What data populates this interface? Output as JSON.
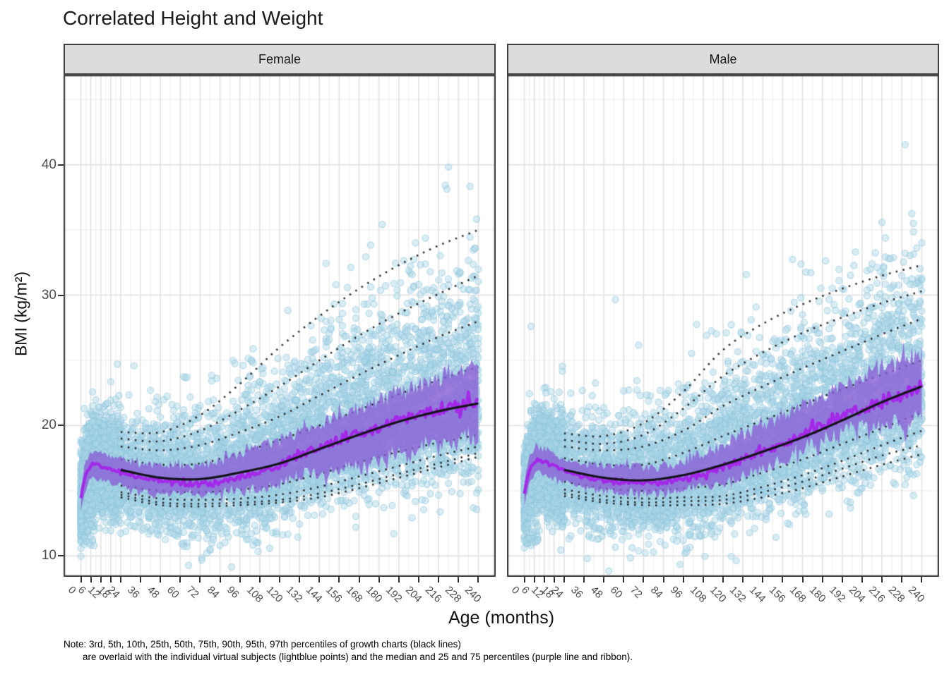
{
  "title": "Correlated Height and Weight",
  "note_line1": "Note: 3rd, 5th, 10th, 25th, 50th, 75th, 90th, 95th, 97th percentiles of growth charts (black lines)",
  "note_line2": "are overlaid with the individual virtual subjects (lightblue points) and the median and 25 and 75 percentiles (purple line and ribbon).",
  "chart_data": {
    "type": "scatter",
    "title": "Correlated Height and Weight",
    "xlabel": "Age (months)",
    "ylabel": "BMI (kg/m²)",
    "x_ticks": [
      0,
      6,
      12,
      18,
      24,
      36,
      48,
      60,
      72,
      84,
      96,
      108,
      120,
      132,
      144,
      156,
      168,
      180,
      192,
      204,
      216,
      228,
      240
    ],
    "y_ticks": [
      10,
      20,
      30,
      40
    ],
    "y_minor": [
      15,
      25,
      35,
      45
    ],
    "xlim": [
      -10.5,
      250.5
    ],
    "ylim": [
      8.4,
      46.9
    ],
    "grid": true,
    "legend_position": "none",
    "percentile_knot_ages": [
      24,
      48,
      72,
      96,
      120,
      144,
      168,
      192,
      216,
      240
    ],
    "facets": [
      {
        "label": "Female",
        "seed": 1337,
        "median_knots": [
          [
            0,
            14.5
          ],
          [
            3,
            16.3
          ],
          [
            6,
            16.9
          ],
          [
            9,
            17.1
          ],
          [
            12,
            16.9
          ],
          [
            18,
            16.7
          ],
          [
            24,
            16.5
          ],
          [
            36,
            16.0
          ],
          [
            48,
            15.8
          ],
          [
            60,
            15.6
          ],
          [
            72,
            15.5
          ],
          [
            84,
            15.7
          ],
          [
            96,
            16.1
          ],
          [
            108,
            16.5
          ],
          [
            120,
            17.0
          ],
          [
            132,
            17.7
          ],
          [
            144,
            18.3
          ],
          [
            156,
            18.9
          ],
          [
            168,
            19.4
          ],
          [
            180,
            19.9
          ],
          [
            192,
            20.4
          ],
          [
            204,
            20.8
          ],
          [
            216,
            21.2
          ],
          [
            228,
            21.5
          ],
          [
            240,
            21.7
          ]
        ],
        "ribbon_upper_knots": [
          [
            0,
            15.4
          ],
          [
            3,
            17.2
          ],
          [
            6,
            17.9
          ],
          [
            9,
            18.1
          ],
          [
            12,
            17.9
          ],
          [
            18,
            17.6
          ],
          [
            24,
            17.4
          ],
          [
            36,
            17.0
          ],
          [
            48,
            16.9
          ],
          [
            60,
            16.9
          ],
          [
            72,
            17.0
          ],
          [
            84,
            17.3
          ],
          [
            96,
            17.8
          ],
          [
            108,
            18.3
          ],
          [
            120,
            18.9
          ],
          [
            132,
            19.5
          ],
          [
            144,
            20.1
          ],
          [
            156,
            20.7
          ],
          [
            168,
            21.3
          ],
          [
            180,
            21.9
          ],
          [
            192,
            22.4
          ],
          [
            204,
            22.9
          ],
          [
            216,
            23.4
          ],
          [
            228,
            24.0
          ],
          [
            240,
            24.5
          ]
        ],
        "ribbon_lower_knots": [
          [
            0,
            13.6
          ],
          [
            3,
            15.3
          ],
          [
            6,
            15.9
          ],
          [
            9,
            16.1
          ],
          [
            12,
            15.9
          ],
          [
            18,
            15.6
          ],
          [
            24,
            15.4
          ],
          [
            36,
            15.0
          ],
          [
            48,
            14.9
          ],
          [
            60,
            14.85
          ],
          [
            72,
            14.9
          ],
          [
            84,
            15.0
          ],
          [
            96,
            15.1
          ],
          [
            108,
            15.2
          ],
          [
            120,
            15.5
          ],
          [
            132,
            16.3
          ],
          [
            144,
            16.2
          ],
          [
            156,
            16.7
          ],
          [
            168,
            17.2
          ],
          [
            180,
            17.6
          ],
          [
            192,
            18.0
          ],
          [
            204,
            18.4
          ],
          [
            216,
            18.7
          ],
          [
            228,
            19.0
          ],
          [
            240,
            19.3
          ]
        ],
        "percentiles": {
          "p3": [
            14.5,
            13.9,
            13.8,
            13.9,
            14.1,
            14.5,
            15.2,
            16.0,
            16.8,
            17.6
          ],
          "p5": [
            14.7,
            14.1,
            14.0,
            14.1,
            14.3,
            14.8,
            15.5,
            16.3,
            17.1,
            17.9
          ],
          "p10": [
            14.9,
            14.4,
            14.3,
            14.4,
            14.7,
            15.3,
            16.1,
            16.9,
            17.7,
            18.4
          ],
          "p25": [
            15.4,
            15.0,
            14.9,
            15.1,
            15.5,
            16.3,
            17.2,
            18.0,
            18.7,
            19.3
          ],
          "p50": [
            16.6,
            16.0,
            15.9,
            16.4,
            17.1,
            18.2,
            19.3,
            20.3,
            21.1,
            21.7
          ],
          "p75": [
            17.4,
            17.0,
            17.1,
            17.9,
            18.9,
            20.0,
            21.2,
            22.4,
            23.5,
            24.5
          ],
          "p90": [
            18.4,
            18.1,
            18.5,
            19.5,
            20.7,
            22.3,
            23.9,
            25.4,
            26.8,
            28.0
          ],
          "p95": [
            19.0,
            18.8,
            19.6,
            21.2,
            23.0,
            25.0,
            26.9,
            28.6,
            30.1,
            31.5
          ],
          "p97": [
            19.5,
            19.5,
            20.8,
            23.2,
            26.0,
            28.4,
            30.5,
            32.3,
            33.8,
            35.0
          ]
        },
        "scatter": {
          "n": 7200,
          "infant_frac": 0.28,
          "sd_low_range": [
            1.65,
            2.7
          ],
          "sd_up_range": [
            1.55,
            5.65
          ],
          "outlier_frac": 0.02
        }
      },
      {
        "label": "Male",
        "seed": 7331,
        "median_knots": [
          [
            0,
            14.8
          ],
          [
            3,
            16.6
          ],
          [
            6,
            17.2
          ],
          [
            9,
            17.4
          ],
          [
            12,
            17.2
          ],
          [
            18,
            16.9
          ],
          [
            24,
            16.6
          ],
          [
            36,
            16.1
          ],
          [
            48,
            15.8
          ],
          [
            60,
            15.7
          ],
          [
            72,
            15.6
          ],
          [
            84,
            15.7
          ],
          [
            96,
            15.9
          ],
          [
            108,
            16.3
          ],
          [
            120,
            16.8
          ],
          [
            132,
            17.4
          ],
          [
            144,
            18.0
          ],
          [
            156,
            18.6
          ],
          [
            168,
            19.3
          ],
          [
            180,
            20.0
          ],
          [
            192,
            20.7
          ],
          [
            204,
            21.3
          ],
          [
            216,
            21.9
          ],
          [
            228,
            22.5
          ],
          [
            240,
            23.0
          ]
        ],
        "ribbon_upper_knots": [
          [
            0,
            15.7
          ],
          [
            3,
            17.5
          ],
          [
            6,
            18.1
          ],
          [
            9,
            18.3
          ],
          [
            12,
            18.1
          ],
          [
            18,
            17.8
          ],
          [
            24,
            17.5
          ],
          [
            36,
            17.0
          ],
          [
            48,
            16.9
          ],
          [
            60,
            16.8
          ],
          [
            72,
            16.8
          ],
          [
            84,
            16.9
          ],
          [
            96,
            17.3
          ],
          [
            108,
            17.9
          ],
          [
            120,
            18.5
          ],
          [
            132,
            19.2
          ],
          [
            144,
            19.9
          ],
          [
            156,
            20.7
          ],
          [
            168,
            21.5
          ],
          [
            180,
            22.3
          ],
          [
            192,
            23.0
          ],
          [
            204,
            23.7
          ],
          [
            216,
            24.3
          ],
          [
            228,
            24.9
          ],
          [
            240,
            25.4
          ]
        ],
        "ribbon_lower_knots": [
          [
            0,
            13.9
          ],
          [
            3,
            15.6
          ],
          [
            6,
            16.2
          ],
          [
            9,
            16.4
          ],
          [
            12,
            16.2
          ],
          [
            18,
            15.9
          ],
          [
            24,
            15.7
          ],
          [
            36,
            15.2
          ],
          [
            48,
            15.0
          ],
          [
            60,
            14.9
          ],
          [
            72,
            14.8
          ],
          [
            84,
            14.9
          ],
          [
            96,
            15.0
          ],
          [
            108,
            15.3
          ],
          [
            120,
            15.6
          ],
          [
            132,
            16.2
          ],
          [
            144,
            16.8
          ],
          [
            156,
            17.5
          ],
          [
            168,
            18.2
          ],
          [
            180,
            18.9
          ],
          [
            192,
            19.5
          ],
          [
            204,
            19.9
          ],
          [
            216,
            20.1
          ],
          [
            228,
            20.3
          ],
          [
            240,
            20.5
          ]
        ],
        "percentiles": {
          "p3": [
            14.6,
            14.1,
            13.9,
            13.9,
            14.0,
            14.5,
            15.2,
            16.1,
            17.0,
            17.8
          ],
          "p5": [
            14.8,
            14.3,
            14.1,
            14.2,
            14.3,
            14.9,
            15.7,
            16.7,
            17.7,
            18.5
          ],
          "p10": [
            15.1,
            14.6,
            14.4,
            14.5,
            14.6,
            15.3,
            16.2,
            17.3,
            18.5,
            19.6
          ],
          "p25": [
            15.7,
            15.2,
            15.0,
            15.2,
            15.5,
            16.4,
            17.4,
            18.6,
            19.8,
            21.0
          ],
          "p50": [
            16.6,
            16.0,
            15.8,
            16.2,
            17.0,
            18.0,
            19.1,
            20.4,
            21.8,
            23.0
          ],
          "p75": [
            17.5,
            17.0,
            17.0,
            17.9,
            19.2,
            20.4,
            21.6,
            22.8,
            23.9,
            25.0
          ],
          "p90": [
            18.4,
            18.1,
            18.4,
            19.6,
            21.5,
            23.0,
            24.4,
            25.7,
            27.0,
            28.2
          ],
          "p95": [
            18.9,
            18.6,
            19.3,
            21.3,
            23.8,
            25.6,
            27.1,
            28.3,
            29.4,
            30.3
          ],
          "p97": [
            19.4,
            19.2,
            20.2,
            22.6,
            25.8,
            27.8,
            29.3,
            30.5,
            31.5,
            32.3
          ]
        },
        "scatter": {
          "n": 7200,
          "infant_frac": 0.28,
          "sd_low_range": [
            1.65,
            2.75
          ],
          "sd_up_range": [
            1.55,
            5.05
          ],
          "outlier_frac": 0.02
        }
      }
    ],
    "colors": {
      "point_fill": "rgba(173,216,230,0.45)",
      "point_stroke": "rgba(137,195,220,0.55)",
      "ribbon": "rgba(137,96,214,0.80)",
      "median_line": "#A428E8",
      "percentile_dotted": "rgba(22,22,22,0.85)",
      "percentile_solid": "#14141b",
      "grid_major": "#E2E2E2",
      "grid_minor": "#F0F0F0",
      "panel_border": "#404040",
      "strip_bg": "#DCDCDC",
      "tick_text": "#4d4d4d"
    }
  }
}
